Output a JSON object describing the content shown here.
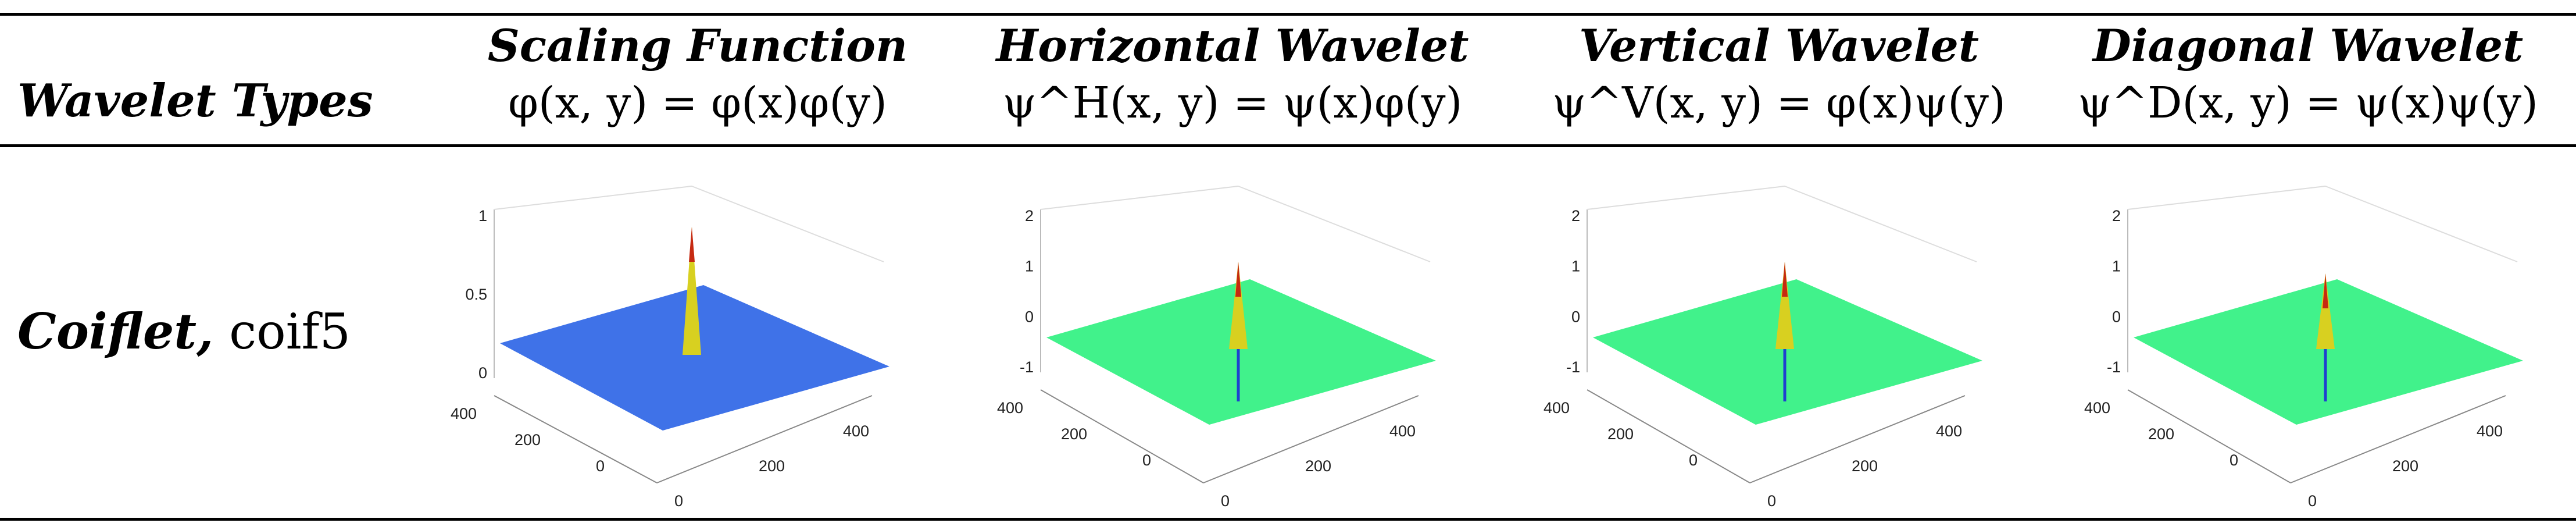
{
  "header": {
    "row_label": "Wavelet Types",
    "columns": [
      {
        "title": "Scaling Function",
        "formula": "φ(x, y) = φ(x)φ(y)"
      },
      {
        "title": "Horizontal Wavelet",
        "formula": "ψ^H(x, y) = ψ(x)φ(y)"
      },
      {
        "title": "Vertical Wavelet",
        "formula": "ψ^V(x, y) = φ(x)ψ(y)"
      },
      {
        "title": "Diagonal Wavelet",
        "formula": "ψ^D(x, y) = ψ(x)ψ(y)"
      }
    ]
  },
  "row": {
    "family": "Coiflet,",
    "name": "coif5"
  },
  "chart_data": [
    {
      "type": "surface",
      "zticks": [
        "1",
        "0.5",
        "0"
      ],
      "xticks": [
        "400",
        "200",
        "0"
      ],
      "yticks": [
        "0",
        "200",
        "400"
      ],
      "surface_color": "#3f72e8"
    },
    {
      "type": "surface",
      "zticks": [
        "2",
        "1",
        "0",
        "-1"
      ],
      "xticks": [
        "400",
        "200",
        "0"
      ],
      "yticks": [
        "0",
        "200",
        "400"
      ],
      "surface_color": "#41f28b"
    },
    {
      "type": "surface",
      "zticks": [
        "2",
        "1",
        "0",
        "-1"
      ],
      "xticks": [
        "400",
        "200",
        "0"
      ],
      "yticks": [
        "0",
        "200",
        "400"
      ],
      "surface_color": "#41f28b"
    },
    {
      "type": "surface",
      "zticks": [
        "2",
        "1",
        "0",
        "-1"
      ],
      "xticks": [
        "400",
        "200",
        "0"
      ],
      "yticks": [
        "0",
        "200",
        "400"
      ],
      "surface_color": "#41f28b"
    }
  ]
}
